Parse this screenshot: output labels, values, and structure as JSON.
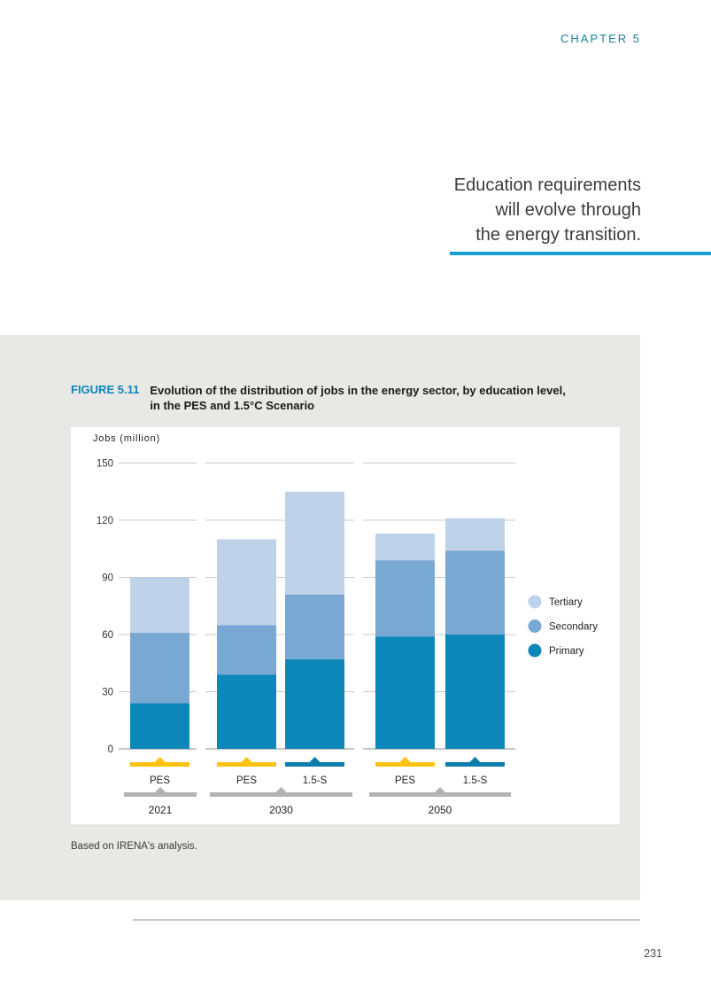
{
  "page": {
    "chapter_label": "CHAPTER 5",
    "page_number": "231"
  },
  "quote": {
    "lines": [
      "Education requirements",
      "will evolve through",
      "the energy transition."
    ]
  },
  "figure": {
    "label": "FIGURE 5.11",
    "title_line1": "Evolution of the distribution of jobs in the energy sector, by education level,",
    "title_line2": "in the PES and 1.5°C Scenario",
    "source": "Based on IRENA's analysis."
  },
  "colors": {
    "chapter_label": "#1d809c",
    "figure_label": "#0f86b8",
    "quote_underline": "#189fd6",
    "figure_panel_bg": "#e8e8e7"
  },
  "chart_data": {
    "type": "bar",
    "stacked": true,
    "title": "Evolution of the distribution of jobs in the energy sector, by education level, in the PES and 1.5°C Scenario",
    "ylabel": "Jobs (million)",
    "ylim": [
      0,
      150
    ],
    "yticks": [
      0,
      30,
      60,
      90,
      120,
      150
    ],
    "gridlines": "horizontal",
    "legend_position": "right",
    "stack_order": [
      "Primary",
      "Secondary",
      "Tertiary"
    ],
    "legend": [
      {
        "label": "Tertiary",
        "color": "#bed3ea"
      },
      {
        "label": "Secondary",
        "color": "#79a8d2"
      },
      {
        "label": "Primary",
        "color": "#0d86ba"
      }
    ],
    "scenario_marker_colors": {
      "PES": "#ffc20e",
      "1.5-S": "#0c7cab"
    },
    "group_bar_color": "#b3b3b3",
    "groups": [
      {
        "year": "2021",
        "bars": [
          {
            "scenario": "PES",
            "segments": {
              "Primary": 24,
              "Secondary": 37,
              "Tertiary": 29
            },
            "total": 90
          }
        ]
      },
      {
        "year": "2030",
        "bars": [
          {
            "scenario": "PES",
            "segments": {
              "Primary": 39,
              "Secondary": 26,
              "Tertiary": 45
            },
            "total": 110
          },
          {
            "scenario": "1.5-S",
            "segments": {
              "Primary": 47,
              "Secondary": 34,
              "Tertiary": 54
            },
            "total": 135
          }
        ]
      },
      {
        "year": "2050",
        "bars": [
          {
            "scenario": "PES",
            "segments": {
              "Primary": 59,
              "Secondary": 40,
              "Tertiary": 14
            },
            "total": 113
          },
          {
            "scenario": "1.5-S",
            "segments": {
              "Primary": 60,
              "Secondary": 44,
              "Tertiary": 17
            },
            "total": 121
          }
        ]
      }
    ]
  }
}
